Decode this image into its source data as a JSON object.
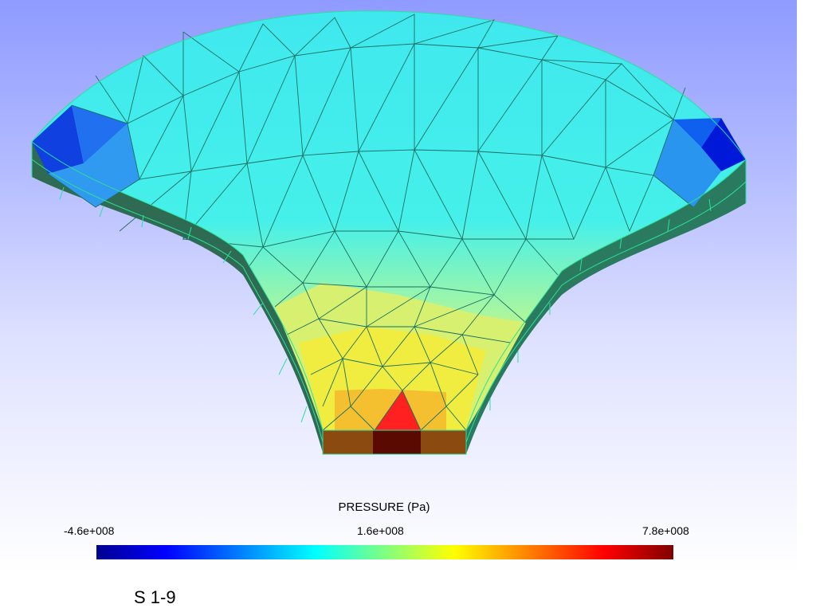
{
  "legend": {
    "title": "PRESSURE (Pa)",
    "min_label": "-4.6e+008",
    "mid_label": "1.6e+008",
    "max_label": "7.8e+008",
    "colormap": [
      "#00008f",
      "#0000ff",
      "#0080ff",
      "#00ffff",
      "#80ff80",
      "#ffff00",
      "#ff8000",
      "#ff0000",
      "#800000"
    ]
  },
  "caption": "S 1-9",
  "colors": {
    "background_top": "#8f9bff",
    "background_bottom": "#ffffff",
    "mesh_edge": "#2be09a"
  }
}
